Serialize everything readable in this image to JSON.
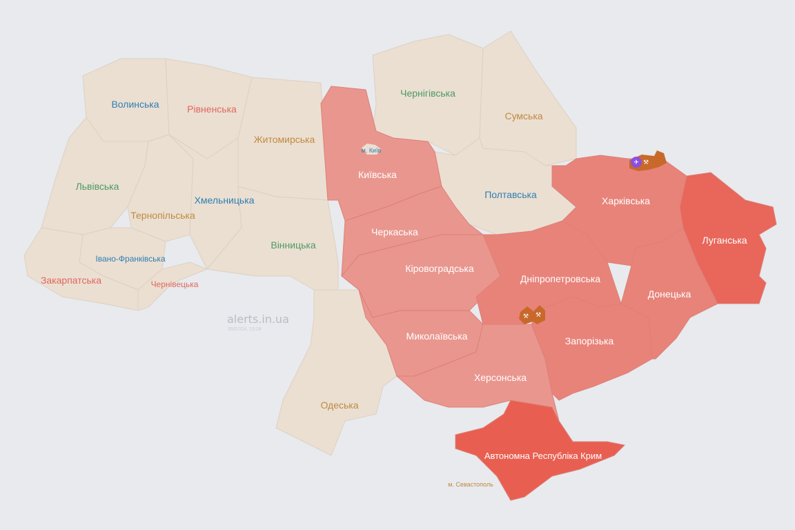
{
  "watermark": {
    "site": "alerts.in.ua",
    "timestamp": "05/07/24, 13:28"
  },
  "colors": {
    "background": "#e8eaee",
    "no_alert": "#ebdfd2",
    "alert": "#e9968e",
    "alert_medium": "#e8837a",
    "alert_strong": "#e8665a",
    "crimea": "#e85f51",
    "threat_marker": "#c8692b",
    "aircraft_marker": "#8a4fe0"
  },
  "regions": {
    "volynska": {
      "label": "Волинська",
      "alert": false,
      "label_color": "#2f7fb0"
    },
    "rivnenska": {
      "label": "Рівненська",
      "alert": false,
      "label_color": "#e0675d"
    },
    "zhytomyrska": {
      "label": "Житомирська",
      "alert": false,
      "label_color": "#bf8a3e"
    },
    "lvivska": {
      "label": "Львівська",
      "alert": false,
      "label_color": "#4b9a62"
    },
    "ternopilska": {
      "label": "Тернопільська",
      "alert": false,
      "label_color": "#bf8a3e"
    },
    "khmelnytska": {
      "label": "Хмельницька",
      "alert": false,
      "label_color": "#2f7fb0"
    },
    "vinnytska": {
      "label": "Вінницька",
      "alert": false,
      "label_color": "#4b9a62"
    },
    "ivano_frankivska": {
      "label": "Івано-Франківська",
      "alert": false,
      "label_color": "#2f7fb0"
    },
    "zakarpatska": {
      "label": "Закарпатська",
      "alert": false,
      "label_color": "#e0675d"
    },
    "chernivetska": {
      "label": "Чернівецька",
      "alert": false,
      "label_color": "#e0675d"
    },
    "odeska": {
      "label": "Одеська",
      "alert": false,
      "label_color": "#bf8a3e"
    },
    "chernihivska": {
      "label": "Чернігівська",
      "alert": false,
      "label_color": "#4b9a62"
    },
    "sumska": {
      "label": "Сумська",
      "alert": false,
      "label_color": "#bf8a3e"
    },
    "poltavska": {
      "label": "Полтавська",
      "alert": false,
      "label_color": "#2f7fb0"
    },
    "kyiv_city": {
      "label": "м. Київ",
      "alert": false,
      "label_color": "#2f7fb0"
    },
    "kyivska": {
      "label": "Київська",
      "alert": true
    },
    "cherkaska": {
      "label": "Черкаська",
      "alert": true
    },
    "kirovohradska": {
      "label": "Кіровоградська",
      "alert": true
    },
    "mykolaivska": {
      "label": "Миколаївська",
      "alert": true
    },
    "khersonska": {
      "label": "Херсонська",
      "alert": true
    },
    "dnipropetrovska": {
      "label": "Дніпропетровська",
      "alert": true
    },
    "zaporizka": {
      "label": "Запорізька",
      "alert": true
    },
    "kharkivska": {
      "label": "Харківська",
      "alert": true
    },
    "donetska": {
      "label": "Донецька",
      "alert": true
    },
    "luhanska": {
      "label": "Луганська",
      "alert": true
    },
    "crimea": {
      "label": "Автономна Республіка Крим",
      "alert": true
    },
    "sevastopol": {
      "label": "м. Севастополь",
      "alert": true,
      "label_color": "#bf8a3e"
    }
  },
  "markers": [
    {
      "icon": "aircraft-icon",
      "region": "kharkivska"
    },
    {
      "icon": "artillery-icon",
      "region": "kharkivska"
    },
    {
      "icon": "artillery-icon",
      "region": "dnipropetrovska"
    },
    {
      "icon": "artillery-icon",
      "region": "dnipropetrovska"
    }
  ]
}
